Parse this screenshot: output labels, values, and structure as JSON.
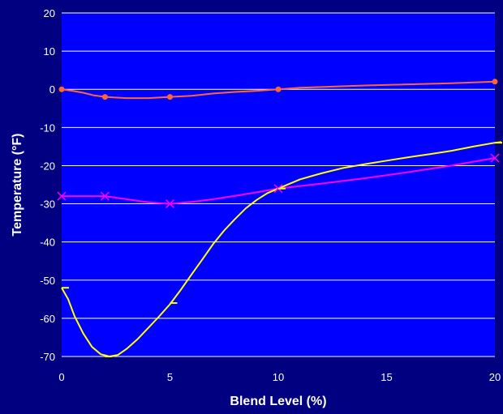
{
  "chart_data": {
    "type": "line",
    "title": "",
    "xlabel": "Blend Level (%)",
    "ylabel": "Temperature (°F)",
    "xlim": [
      0,
      20
    ],
    "ylim": [
      -70,
      20
    ],
    "x_ticks": [
      0,
      5,
      10,
      15,
      20
    ],
    "y_ticks": [
      20,
      10,
      0,
      -10,
      -20,
      -30,
      -40,
      -50,
      -60,
      -70
    ],
    "grid": "horizontal",
    "legend": "none",
    "colors": {
      "background": "#000080",
      "plot_area": "#0000FF",
      "gridline": "#FFFFFF",
      "text": "#FFFFFF"
    },
    "series": [
      {
        "color": "#FF6633",
        "marker": "circle",
        "points": [
          [
            0,
            0
          ],
          [
            2,
            -2
          ],
          [
            5,
            -2
          ],
          [
            10,
            0
          ],
          [
            20,
            2
          ]
        ],
        "curve": [
          [
            0,
            0
          ],
          [
            0.5,
            -0.4
          ],
          [
            1,
            -0.9
          ],
          [
            1.5,
            -1.6
          ],
          [
            2,
            -2
          ],
          [
            3,
            -2.3
          ],
          [
            4,
            -2.3
          ],
          [
            5,
            -2
          ],
          [
            6,
            -1.7
          ],
          [
            7,
            -1.1
          ],
          [
            8,
            -0.7
          ],
          [
            9,
            -0.4
          ],
          [
            10,
            0
          ],
          [
            11,
            0.4
          ],
          [
            12,
            0.6
          ],
          [
            14,
            1
          ],
          [
            16,
            1.3
          ],
          [
            18,
            1.6
          ],
          [
            20,
            2
          ]
        ]
      },
      {
        "color": "#FF00FF",
        "marker": "x",
        "points": [
          [
            0,
            -28
          ],
          [
            2,
            -28
          ],
          [
            5,
            -30
          ],
          [
            10,
            -26
          ],
          [
            20,
            -18
          ]
        ],
        "curve": [
          [
            0,
            -28
          ],
          [
            1,
            -28
          ],
          [
            2,
            -28
          ],
          [
            3,
            -28.8
          ],
          [
            4,
            -29.6
          ],
          [
            5,
            -30
          ],
          [
            6,
            -29.5
          ],
          [
            7,
            -28.8
          ],
          [
            8,
            -27.9
          ],
          [
            9,
            -27
          ],
          [
            10,
            -26
          ],
          [
            12,
            -24.7
          ],
          [
            14,
            -23.3
          ],
          [
            16,
            -21.7
          ],
          [
            18,
            -20
          ],
          [
            20,
            -18
          ]
        ]
      },
      {
        "color": "#FFFF00",
        "marker": "dash",
        "points": [
          [
            0,
            -52
          ],
          [
            2,
            -70
          ],
          [
            5,
            -56
          ],
          [
            10,
            -26
          ],
          [
            20,
            -14
          ]
        ],
        "curve": [
          [
            0,
            -52
          ],
          [
            0.3,
            -55
          ],
          [
            0.6,
            -59.5
          ],
          [
            1,
            -64
          ],
          [
            1.4,
            -67.5
          ],
          [
            1.8,
            -69.4
          ],
          [
            2.2,
            -70
          ],
          [
            2.6,
            -69.6
          ],
          [
            3,
            -68
          ],
          [
            3.5,
            -65.5
          ],
          [
            4,
            -62.5
          ],
          [
            4.5,
            -59.5
          ],
          [
            5,
            -56.3
          ],
          [
            5.5,
            -52.5
          ],
          [
            6,
            -48.5
          ],
          [
            6.5,
            -44.5
          ],
          [
            7,
            -40.5
          ],
          [
            7.5,
            -37
          ],
          [
            8,
            -34
          ],
          [
            8.5,
            -31.2
          ],
          [
            9,
            -29
          ],
          [
            9.5,
            -27.2
          ],
          [
            10,
            -26
          ],
          [
            11,
            -23.6
          ],
          [
            12,
            -22
          ],
          [
            13,
            -20.6
          ],
          [
            14,
            -19.6
          ],
          [
            15,
            -18.7
          ],
          [
            16,
            -17.8
          ],
          [
            17,
            -17
          ],
          [
            18,
            -16.1
          ],
          [
            19,
            -15
          ],
          [
            20,
            -14
          ],
          [
            20.3,
            -13.8
          ]
        ]
      }
    ]
  }
}
